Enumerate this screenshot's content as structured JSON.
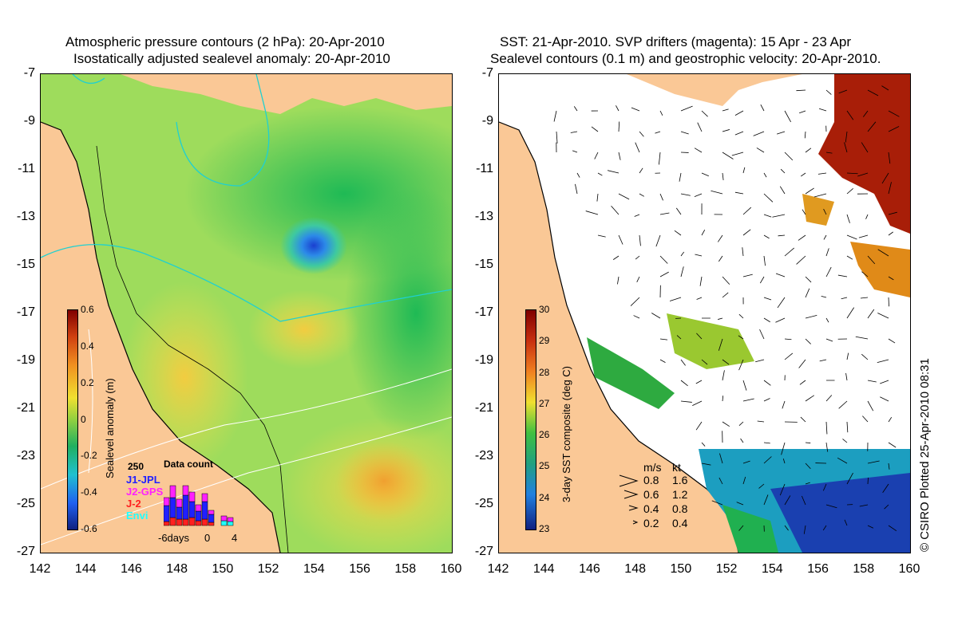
{
  "left_panel": {
    "title_line1": "Atmospheric pressure contours (2 hPa): 20-Apr-2010",
    "title_line2": "Isostatically adjusted sealevel anomaly: 20-Apr-2010",
    "colorbar": {
      "label": "Sealevel anomaly (m)",
      "ticks": [
        "0.6",
        "0.4",
        "0.2",
        "0",
        "-0.2",
        "-0.4",
        "-0.6"
      ],
      "range": [
        -0.6,
        0.6
      ]
    },
    "data_count": {
      "title": "Data count",
      "max_label": "250",
      "series": [
        "J1-JPL",
        "J2-GPS",
        "J-2",
        "Envi"
      ],
      "series_colors": [
        "#2020ff",
        "#ff20ff",
        "#ff2020",
        "#20ffff"
      ],
      "x_labels": [
        "-6days",
        "0",
        "4"
      ]
    },
    "colors": {
      "land": "#fac896",
      "sea_mid": "#8fd85a",
      "sea_low": "#1e5fe0",
      "sea_high": "#f0d040"
    }
  },
  "right_panel": {
    "title_line1": "SST: 21-Apr-2010. SVP drifters (magenta): 15 Apr - 23 Apr",
    "title_line2": "Sealevel contours (0.1 m) and geostrophic velocity: 20-Apr-2010.",
    "colorbar": {
      "label": "3-day SST composite (deg C)",
      "ticks": [
        "30",
        "29",
        "28",
        "27",
        "26",
        "25",
        "24",
        "23"
      ],
      "range": [
        23,
        30
      ]
    },
    "speed_legend": {
      "header_ms": "m/s",
      "header_kt": "kt",
      "rows": [
        {
          "ms": "0.8",
          "kt": "1.6"
        },
        {
          "ms": "0.6",
          "kt": "1.2"
        },
        {
          "ms": "0.4",
          "kt": "0.8"
        },
        {
          "ms": "0.2",
          "kt": "0.4"
        }
      ]
    },
    "credit": "© CSIRO Plotted 25-Apr-2010 08:31"
  },
  "axes": {
    "y_ticks": [
      "-7",
      "-9",
      "-11",
      "-13",
      "-15",
      "-17",
      "-19",
      "-21",
      "-23",
      "-25",
      "-27"
    ],
    "x_ticks": [
      "142",
      "144",
      "146",
      "148",
      "150",
      "152",
      "154",
      "156",
      "158",
      "160"
    ],
    "lon_range": [
      142,
      160
    ],
    "lat_range": [
      -27,
      -7
    ]
  }
}
